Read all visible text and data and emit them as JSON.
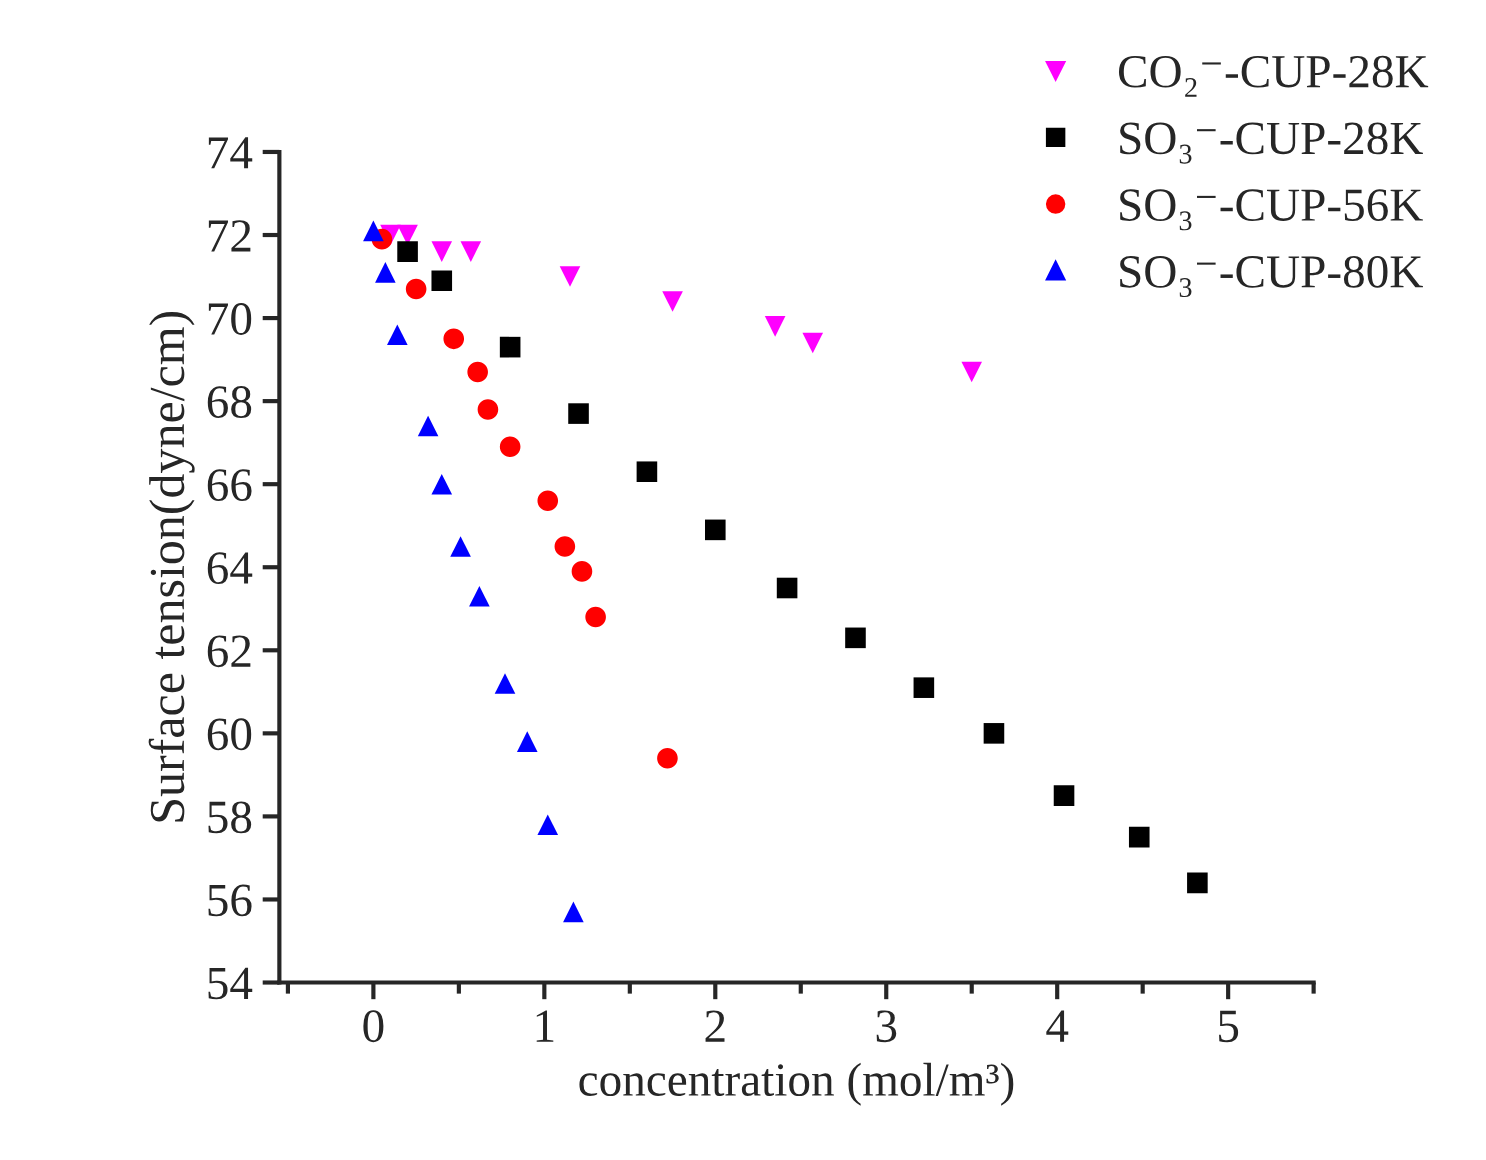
{
  "chart_data": {
    "type": "scatter",
    "xlabel": "concentration (mol/m³)",
    "ylabel": "Surface tension(dyne/cm)",
    "xlim": [
      -0.55,
      5.5
    ],
    "ylim": [
      54,
      74
    ],
    "xticks": [
      0,
      1,
      2,
      3,
      4,
      5
    ],
    "yticks": [
      54,
      56,
      58,
      60,
      62,
      64,
      66,
      68,
      70,
      72,
      74
    ],
    "grid": false,
    "legend": "top right",
    "series": [
      {
        "name": "CO₂⁻-CUP-28K",
        "color": "#ff00ff",
        "marker": "triangle_down",
        "x": [
          0.1,
          0.2,
          0.4,
          0.57,
          1.15,
          1.75,
          2.35,
          2.57,
          3.5
        ],
        "values": [
          72.0,
          72.0,
          71.6,
          71.6,
          71.0,
          70.4,
          69.8,
          69.4,
          68.7
        ]
      },
      {
        "name": "SO₃⁻-CUP-28K",
        "color": "#000000",
        "marker": "square",
        "x": [
          0.2,
          0.4,
          0.8,
          1.2,
          1.6,
          2.0,
          2.42,
          2.82,
          3.22,
          3.63,
          4.04,
          4.48,
          4.82
        ],
        "values": [
          71.6,
          70.9,
          69.3,
          67.7,
          66.3,
          64.9,
          63.5,
          62.3,
          61.1,
          60.0,
          58.5,
          57.5,
          56.4
        ]
      },
      {
        "name": "SO₃⁻-CUP-56K",
        "color": "#ff0000",
        "marker": "circle",
        "x": [
          0.05,
          0.25,
          0.47,
          0.61,
          0.67,
          0.8,
          1.02,
          1.12,
          1.22,
          1.3,
          1.72
        ],
        "values": [
          71.9,
          70.7,
          69.5,
          68.7,
          67.8,
          66.9,
          65.6,
          64.5,
          63.9,
          62.8,
          59.4
        ]
      },
      {
        "name": "SO₃⁻-CUP-80K",
        "color": "#0000ff",
        "marker": "triangle",
        "x": [
          0,
          0.07,
          0.14,
          0.32,
          0.4,
          0.51,
          0.62,
          0.77,
          0.9,
          1.02,
          1.17
        ],
        "values": [
          72.1,
          71.1,
          69.6,
          67.4,
          66.0,
          64.5,
          63.3,
          61.2,
          59.8,
          57.8,
          55.7
        ]
      }
    ]
  }
}
